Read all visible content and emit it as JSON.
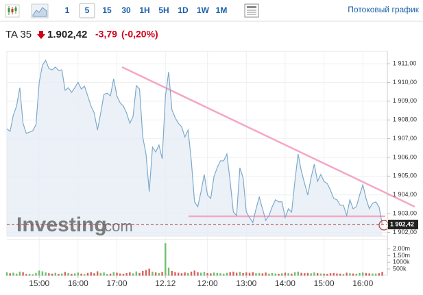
{
  "toolbar": {
    "intervals": [
      "1",
      "5",
      "15",
      "30",
      "1H",
      "5H",
      "1D",
      "1W",
      "1M"
    ],
    "active": "5",
    "stream_link": "Потоковый график"
  },
  "header": {
    "symbol": "TA 35",
    "price": "1.902,42",
    "change": "-3,79",
    "change_percent": "(-0,20%)"
  },
  "watermark": {
    "brand": "Investing",
    "suffix": ".com"
  },
  "chart_data": {
    "type": "line",
    "series": [
      {
        "name": "TA 35",
        "color": "#7ea9cb",
        "values": [
          1907.53,
          1907.39,
          1908.26,
          1908.74,
          1909.72,
          1907.82,
          1907.28,
          1907.35,
          1907.42,
          1907.75,
          1910.01,
          1910.93,
          1911.18,
          1910.74,
          1910.67,
          1910.82,
          1910.64,
          1910.67,
          1909.58,
          1909.72,
          1909.47,
          1909.72,
          1910.01,
          1909.65,
          1909.8,
          1909.28,
          1908.74,
          1908.37,
          1907.46,
          1908.37,
          1909.36,
          1909.43,
          1909.28,
          1910.2,
          1909.28,
          1908.92,
          1908.74,
          1908.37,
          1907.82,
          1908.19,
          1909.83,
          1909.65,
          1907.09,
          1906.18,
          1904.18,
          1906.55,
          1906.29,
          1906.66,
          1905.93,
          1909.28,
          1910.56,
          1908.55,
          1908.12,
          1907.82,
          1907.64,
          1907.09,
          1907.46,
          1905.82,
          1903.63,
          1903.37,
          1904.18,
          1905.09,
          1903.99,
          1903.81,
          1904.98,
          1905.45,
          1905.82,
          1905.82,
          1906.18,
          1904.72,
          1903.08,
          1902.9,
          1905.45,
          1904.91,
          1903.08,
          1902.79,
          1902.53,
          1903.26,
          1903.88,
          1903.26,
          1902.64,
          1902.9,
          1903.37,
          1903.74,
          1903.63,
          1903.63,
          1902.79,
          1903.26,
          1903.08,
          1904.72,
          1906.18,
          1905.27,
          1904.61,
          1903.99,
          1904.91,
          1905.64,
          1904.72,
          1905.09,
          1904.72,
          1904.61,
          1904.25,
          1903.81,
          1903.74,
          1903.45,
          1903.45,
          1902.9,
          1903.74,
          1903.26,
          1903.37,
          1903.99,
          1904.54,
          1903.81,
          1903.26,
          1903.55,
          1903.63,
          1903.37,
          1902.42
        ]
      }
    ],
    "volume": {
      "values": [
        250000,
        180000,
        220000,
        150000,
        300000,
        260000,
        120000,
        140000,
        110000,
        200000,
        380000,
        320000,
        240000,
        180000,
        150000,
        210000,
        130000,
        160000,
        280000,
        190000,
        140000,
        170000,
        230000,
        150000,
        120000,
        200000,
        260000,
        180000,
        320000,
        210000,
        240000,
        130000,
        150000,
        270000,
        220000,
        160000,
        140000,
        190000,
        250000,
        170000,
        310000,
        200000,
        350000,
        420000,
        520000,
        300000,
        240000,
        200000,
        280000,
        2430000,
        600000,
        350000,
        260000,
        220000,
        180000,
        240000,
        200000,
        300000,
        380000,
        260000,
        220000,
        280000,
        190000,
        170000,
        230000,
        200000,
        180000,
        150000,
        210000,
        260000,
        300000,
        220000,
        280000,
        190000,
        240000,
        210000,
        260000,
        180000,
        200000,
        170000,
        230000,
        150000,
        190000,
        160000,
        140000,
        170000,
        220000,
        180000,
        150000,
        260000,
        300000,
        210000,
        180000,
        200000,
        170000,
        240000,
        190000,
        160000,
        150000,
        140000,
        180000,
        200000,
        160000,
        150000,
        130000,
        220000,
        180000,
        160000,
        140000,
        190000,
        230000,
        200000,
        170000,
        160000,
        150000,
        180000,
        280000
      ],
      "ylim": [
        0,
        2700000
      ],
      "yticks": [
        {
          "value": 2000000,
          "label": "2.00m"
        },
        {
          "value": 1500000,
          "label": "1.50m"
        },
        {
          "value": 1000000,
          "label": "1000k"
        },
        {
          "value": 500000,
          "label": "500k"
        }
      ]
    },
    "price_tag": {
      "value": 1902.42,
      "label": "1 902,42"
    },
    "xlim": [
      0,
      118
    ],
    "xticks": [
      {
        "value": 10,
        "label": "15:00"
      },
      {
        "value": 22,
        "label": "16:00"
      },
      {
        "value": 34,
        "label": "17:00"
      },
      {
        "value": 49,
        "label": "12.12"
      },
      {
        "value": 62,
        "label": "12:00"
      },
      {
        "value": 74,
        "label": "13:00"
      },
      {
        "value": 86,
        "label": "14:00"
      },
      {
        "value": 98,
        "label": "15:00"
      },
      {
        "value": 110,
        "label": "16:00"
      }
    ],
    "ylim": [
      1901.8,
      1911.66
    ],
    "yticks": [
      {
        "value": 1911,
        "label": "1 911,00"
      },
      {
        "value": 1910,
        "label": "1 910,00"
      },
      {
        "value": 1909,
        "label": "1 909,00"
      },
      {
        "value": 1908,
        "label": "1 908,00"
      },
      {
        "value": 1907,
        "label": "1 907,00"
      },
      {
        "value": 1906,
        "label": "1 906,00"
      },
      {
        "value": 1905,
        "label": "1 905,00"
      },
      {
        "value": 1904,
        "label": "1 904,00"
      },
      {
        "value": 1903,
        "label": "1 903,00"
      },
      {
        "value": 1902,
        "label": "1 902,00"
      }
    ],
    "grid": true
  }
}
